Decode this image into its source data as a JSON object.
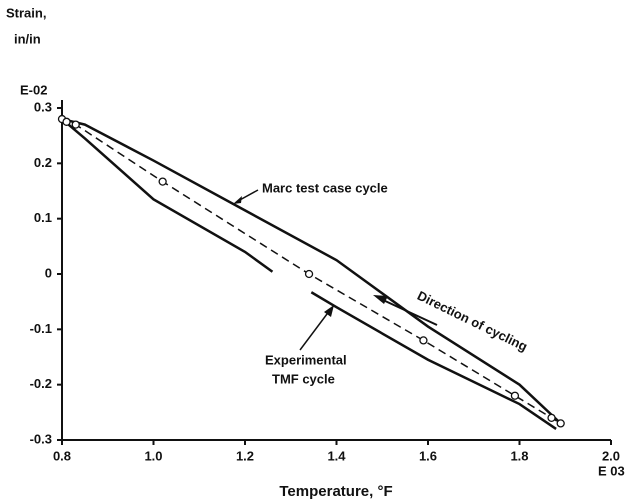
{
  "chart_data": {
    "type": "line",
    "ylabel": [
      "Strain,",
      "in/in"
    ],
    "xlabel": "Temperature, °F",
    "y_multiplier": "E-02",
    "x_multiplier": "E 03",
    "xlim": [
      0.8,
      2.0
    ],
    "ylim": [
      -0.3,
      0.3
    ],
    "xticks": [
      0.8,
      {
        "value": 1,
        "label": "1.0"
      },
      1.2,
      1.4,
      1.6,
      1.8,
      {
        "value": 2,
        "label": "2.0"
      }
    ],
    "yticks": [
      0.3,
      0.2,
      0.1,
      0,
      -0.1,
      -0.2,
      -0.3
    ],
    "series": [
      {
        "style": "solid",
        "color": "#111111",
        "x": [
          0.8,
          0.85,
          1.0,
          1.2,
          1.4,
          1.6,
          1.8,
          1.89
        ],
        "values": [
          0.28,
          0.27,
          0.205,
          0.115,
          0.025,
          -0.095,
          -0.2,
          -0.27
        ]
      },
      {
        "style": "solid",
        "color": "#111111",
        "x": [
          0.8,
          0.85,
          1.0,
          1.2,
          1.26,
          1.3,
          1.345,
          1.4,
          1.6,
          1.8,
          1.88
        ],
        "values": [
          0.28,
          0.245,
          0.135,
          0.04,
          0.004,
          null,
          -0.033,
          -0.06,
          -0.155,
          -0.235,
          -0.28
        ]
      },
      {
        "style": "dashed",
        "color": "#111111",
        "markers": true,
        "x": [
          0.8,
          0.81,
          0.83,
          1.02,
          1.34,
          1.59,
          1.79,
          1.87,
          1.89
        ],
        "values": [
          0.28,
          0.275,
          0.27,
          0.167,
          0.0,
          -0.12,
          -0.22,
          -0.26,
          -0.27
        ]
      }
    ],
    "annotations": [
      "Marc test case cycle",
      "Experimental",
      "TMF cycle",
      "Direction of cycling"
    ]
  }
}
